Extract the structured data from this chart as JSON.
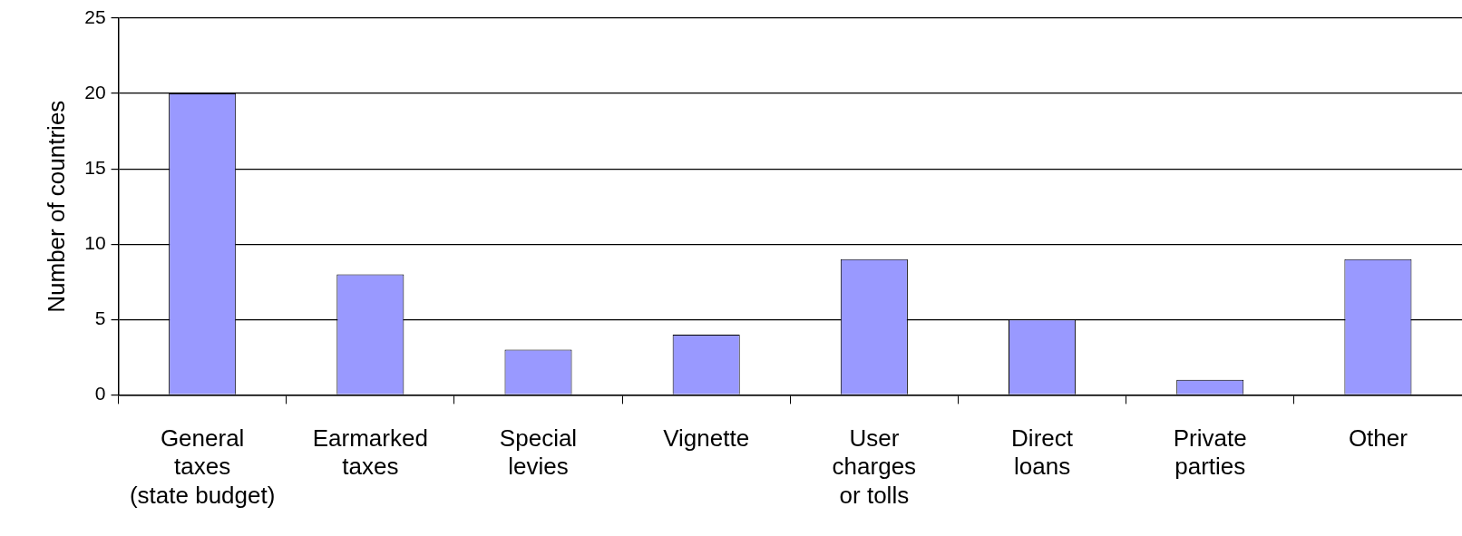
{
  "chart_data": {
    "type": "bar",
    "ylabel": "Number of countries",
    "categories": [
      "General\ntaxes\n(state budget)",
      "Earmarked\ntaxes",
      "Special\nlevies",
      "Vignette",
      "User\ncharges\nor tolls",
      "Direct\nloans",
      "Private\nparties",
      "Other"
    ],
    "values": [
      20,
      8,
      3,
      4,
      9,
      5,
      1,
      9
    ],
    "color": "#9999ff",
    "ylim": [
      0,
      25
    ],
    "yticks": [
      0,
      5,
      10,
      15,
      20,
      25
    ],
    "grid": "y",
    "legend": false
  }
}
